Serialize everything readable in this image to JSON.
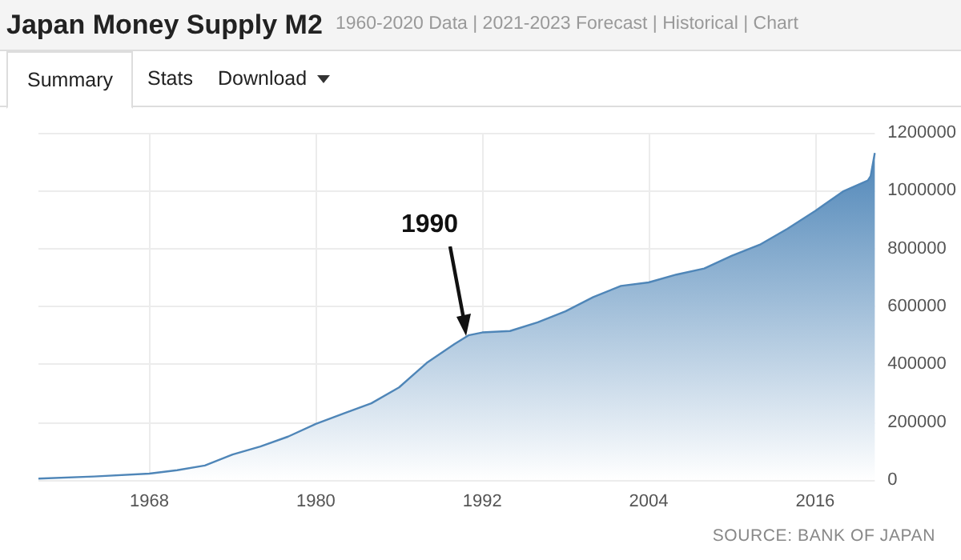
{
  "chart_data": {
    "type": "area",
    "title": "Japan Money Supply M2",
    "subtitle": "1960-2020 Data | 2021-2023 Forecast | Historical | Chart",
    "annotations": [
      "Summary",
      "Stats",
      "Download",
      "SOURCE: BANK OF JAPAN",
      {
        "text": "1990",
        "x": 1991,
        "y": 500000
      }
    ],
    "x": [
      1960,
      1964,
      1968,
      1970,
      1972,
      1974,
      1976,
      1978,
      1980,
      1982,
      1984,
      1986,
      1988,
      1990,
      1991,
      1992,
      1994,
      1996,
      1998,
      2000,
      2002,
      2004,
      2006,
      2008,
      2010,
      2012,
      2014,
      2016,
      2018,
      2019.8,
      2020,
      2020.3
    ],
    "series": [
      {
        "color": "#4f86b8",
        "values": [
          5000,
          12000,
          22000,
          34000,
          50000,
          88000,
          116000,
          150000,
          194000,
          230000,
          265000,
          320000,
          405000,
          470000,
          500000,
          510000,
          515000,
          545000,
          583000,
          632000,
          671000,
          683000,
          710000,
          731000,
          775000,
          813000,
          868000,
          930000,
          997000,
          1035000,
          1050000,
          1130000
        ]
      }
    ],
    "xlim": [
      1960,
      2020.3
    ],
    "xticks": [
      1968,
      1980,
      1992,
      2004,
      2016
    ],
    "ylim": [
      0,
      1200000
    ],
    "yticks": [
      0,
      200000,
      400000,
      600000,
      800000,
      1000000,
      1200000
    ],
    "grid": true,
    "marker": "none"
  }
}
